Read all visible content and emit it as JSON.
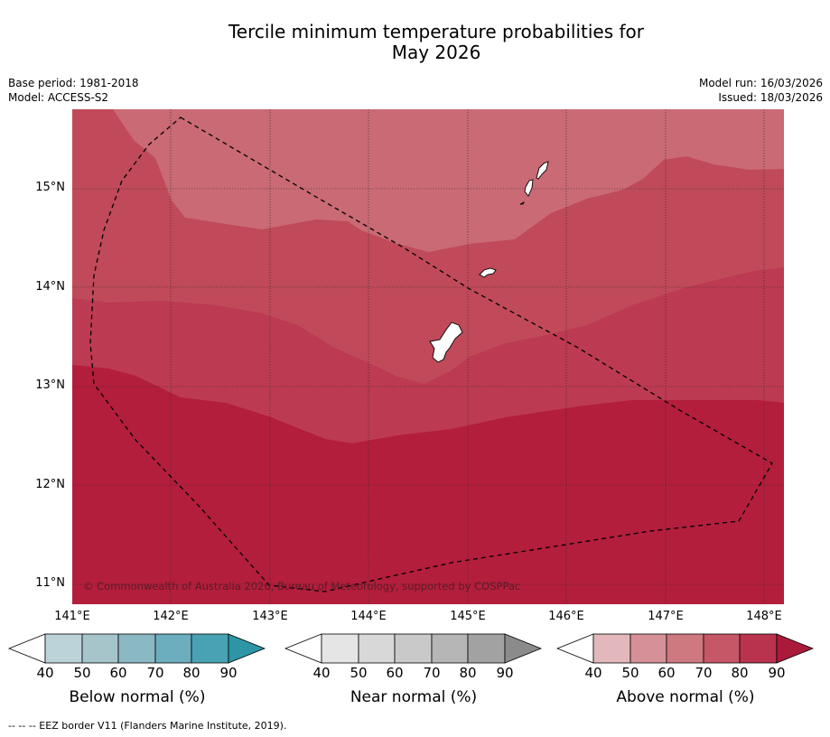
{
  "title": {
    "line1": "Tercile minimum temperature probabilities for",
    "line2": "May 2026"
  },
  "meta": {
    "base_period": "Base period: 1981-2018",
    "model": "Model: ACCESS-S2",
    "model_run": "Model run: 16/03/2026",
    "issued": "Issued: 18/03/2026"
  },
  "map": {
    "copyright": "© Commonwealth of Australia 2026, Bureau of Meteorology, supported by COSPPac",
    "lat_labels": [
      "15°N",
      "14°N",
      "13°N",
      "12°N",
      "11°N"
    ],
    "lon_labels": [
      "141°E",
      "142°E",
      "143°E",
      "144°E",
      "145°E",
      "146°E",
      "147°E",
      "148°E"
    ],
    "region_colors": {
      "above_60_70": "#c96a74",
      "above_70_80": "#c04a59",
      "above_80_90": "#bc3a52",
      "above_90": "#b31e3c",
      "land": "#ffffff",
      "eez_border": "#000000"
    }
  },
  "legend": {
    "ticks": [
      "40",
      "50",
      "60",
      "70",
      "80",
      "90"
    ],
    "colorbars": [
      {
        "label": "Below normal (%)",
        "colors": [
          "#bdd3da",
          "#a6c5ca",
          "#8ab8c3",
          "#6caebd",
          "#48a2b4",
          "#2d95a6"
        ]
      },
      {
        "label": "Near normal (%)",
        "colors": [
          "#e5e5e5",
          "#d8d8d8",
          "#c9c9c9",
          "#b6b6b6",
          "#a2a2a2",
          "#8b8b8b"
        ]
      },
      {
        "label": "Above normal (%)",
        "colors": [
          "#e2b8bd",
          "#d69198",
          "#ce7880",
          "#c65766",
          "#b9324e",
          "#aa1a3a"
        ]
      }
    ]
  },
  "footnote": "--  --  -- EEZ border V11 (Flanders Marine Institute, 2019)."
}
